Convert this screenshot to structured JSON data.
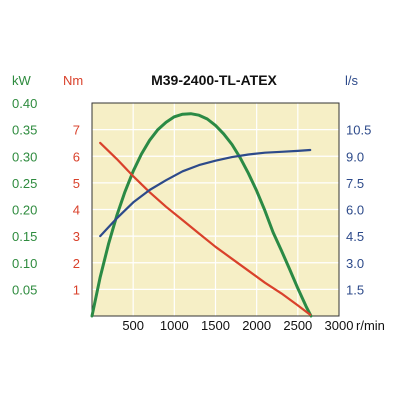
{
  "chart_data": {
    "type": "line",
    "title": "M39-2400-TL-ATEX",
    "grid": true,
    "background_color": "#f6efc6",
    "x_axis": {
      "unit": "r/min",
      "range": [
        0,
        3000
      ],
      "ticks": [
        500,
        1000,
        1500,
        2000,
        2500,
        3000
      ],
      "tick_labels": [
        "500",
        "1000",
        "1500",
        "2000",
        "2500",
        "3000"
      ]
    },
    "y_axes": {
      "power": {
        "unit": "kW",
        "color": "#2e8b3e",
        "range": [
          0,
          0.4
        ],
        "ticks": [
          0.05,
          0.1,
          0.15,
          0.2,
          0.25,
          0.3,
          0.35,
          0.4
        ],
        "tick_labels": [
          "0.05",
          "0.10",
          "0.15",
          "0.20",
          "0.25",
          "0.30",
          "0.35",
          "0.40"
        ]
      },
      "torque": {
        "unit": "Nm",
        "color": "#d9412b",
        "range": [
          0,
          8
        ],
        "ticks": [
          1,
          2,
          3,
          4,
          5,
          6,
          7
        ],
        "tick_labels": [
          "1",
          "2",
          "3",
          "4",
          "5",
          "6",
          "7"
        ]
      },
      "flow": {
        "unit": "l/s",
        "color": "#2d4a8a",
        "range": [
          0,
          12
        ],
        "ticks": [
          1.5,
          3,
          4.5,
          6,
          7.5,
          9,
          10.5
        ],
        "tick_labels": [
          "1.5",
          "3.0",
          "4.5",
          "6.0",
          "7.5",
          "9.0",
          "10.5"
        ]
      }
    },
    "series": [
      {
        "axis": "power",
        "color": "#2b8a45",
        "x": [
          0,
          100,
          200,
          300,
          400,
          500,
          600,
          700,
          800,
          900,
          1000,
          1100,
          1200,
          1300,
          1400,
          1500,
          1600,
          1700,
          1800,
          1900,
          2000,
          2100,
          2200,
          2300,
          2400,
          2500,
          2600,
          2660
        ],
        "y": [
          0,
          0.073,
          0.135,
          0.188,
          0.233,
          0.272,
          0.304,
          0.33,
          0.35,
          0.364,
          0.374,
          0.379,
          0.38,
          0.377,
          0.37,
          0.358,
          0.342,
          0.322,
          0.297,
          0.268,
          0.235,
          0.198,
          0.157,
          0.123,
          0.088,
          0.052,
          0.018,
          0
        ]
      },
      {
        "axis": "torque",
        "color": "#d9412b",
        "x": [
          100,
          300,
          500,
          700,
          900,
          1100,
          1300,
          1500,
          1700,
          1900,
          2100,
          2300,
          2500,
          2650
        ],
        "y": [
          6.5,
          5.9,
          5.25,
          4.65,
          4.1,
          3.6,
          3.1,
          2.6,
          2.15,
          1.7,
          1.25,
          0.85,
          0.4,
          0.05
        ]
      },
      {
        "axis": "flow",
        "color": "#2d4a8a",
        "x": [
          100,
          300,
          500,
          700,
          900,
          1100,
          1300,
          1500,
          1700,
          1900,
          2100,
          2300,
          2500,
          2650
        ],
        "y": [
          4.5,
          5.5,
          6.4,
          7.1,
          7.65,
          8.15,
          8.5,
          8.75,
          8.95,
          9.1,
          9.2,
          9.25,
          9.3,
          9.35
        ]
      }
    ]
  }
}
